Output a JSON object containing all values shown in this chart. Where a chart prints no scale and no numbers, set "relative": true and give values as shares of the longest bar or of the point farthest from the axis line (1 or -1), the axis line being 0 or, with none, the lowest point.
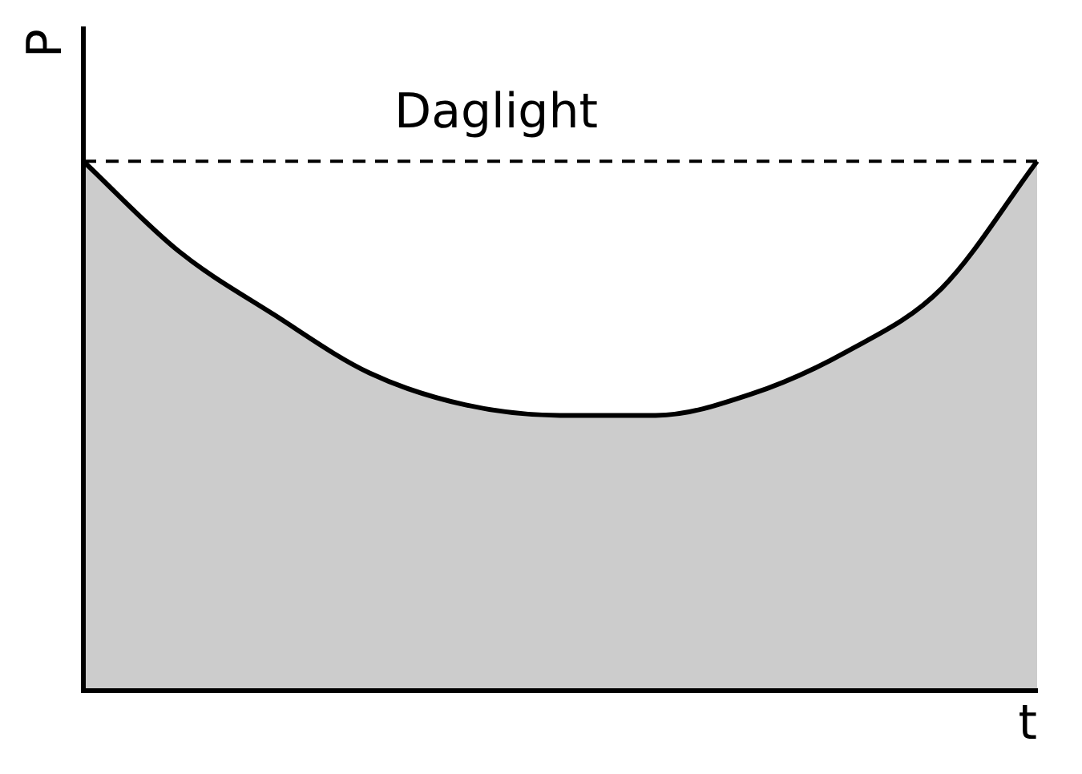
{
  "chart_data": {
    "type": "area",
    "relative": true,
    "xlabel": "t",
    "ylabel": "P",
    "categories": [
      null,
      null,
      null,
      null,
      null,
      null,
      null,
      null,
      null,
      null,
      null
    ],
    "series": [
      {
        "color": "#000000",
        "values": [
          1.0,
          0.83,
          0.71,
          0.6,
          0.54,
          0.52,
          0.52,
          0.56,
          0.64,
          0.76,
          1.0
        ]
      }
    ],
    "ref_lines": [
      {
        "axis": "y",
        "value": 1.0,
        "label": "Daglight",
        "line_style": "dashed",
        "color": "#000000"
      }
    ],
    "grid": false,
    "legend": false
  }
}
